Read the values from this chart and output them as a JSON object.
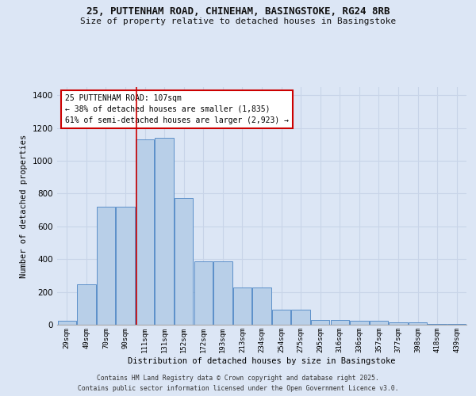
{
  "title_line1": "25, PUTTENHAM ROAD, CHINEHAM, BASINGSTOKE, RG24 8RB",
  "title_line2": "Size of property relative to detached houses in Basingstoke",
  "xlabel": "Distribution of detached houses by size in Basingstoke",
  "ylabel": "Number of detached properties",
  "categories": [
    "29sqm",
    "49sqm",
    "70sqm",
    "90sqm",
    "111sqm",
    "131sqm",
    "152sqm",
    "172sqm",
    "193sqm",
    "213sqm",
    "234sqm",
    "254sqm",
    "275sqm",
    "295sqm",
    "316sqm",
    "336sqm",
    "357sqm",
    "377sqm",
    "398sqm",
    "418sqm",
    "439sqm"
  ],
  "values": [
    25,
    245,
    720,
    720,
    1130,
    1140,
    775,
    385,
    385,
    225,
    225,
    90,
    90,
    28,
    28,
    22,
    22,
    15,
    15,
    3,
    3
  ],
  "bar_color": "#b8cfe8",
  "bar_edge_color": "#5b8fc9",
  "grid_color": "#c8d4e8",
  "background_color": "#dce6f5",
  "vline_x_index": 4,
  "vline_color": "#cc0000",
  "annotation_title": "25 PUTTENHAM ROAD: 107sqm",
  "annotation_line1": "← 38% of detached houses are smaller (1,835)",
  "annotation_line2": "61% of semi-detached houses are larger (2,923) →",
  "annotation_box_facecolor": "white",
  "annotation_box_edgecolor": "#cc0000",
  "footnote_line1": "Contains HM Land Registry data © Crown copyright and database right 2025.",
  "footnote_line2": "Contains public sector information licensed under the Open Government Licence v3.0.",
  "ylim": [
    0,
    1450
  ],
  "yticks": [
    0,
    200,
    400,
    600,
    800,
    1000,
    1200,
    1400
  ]
}
